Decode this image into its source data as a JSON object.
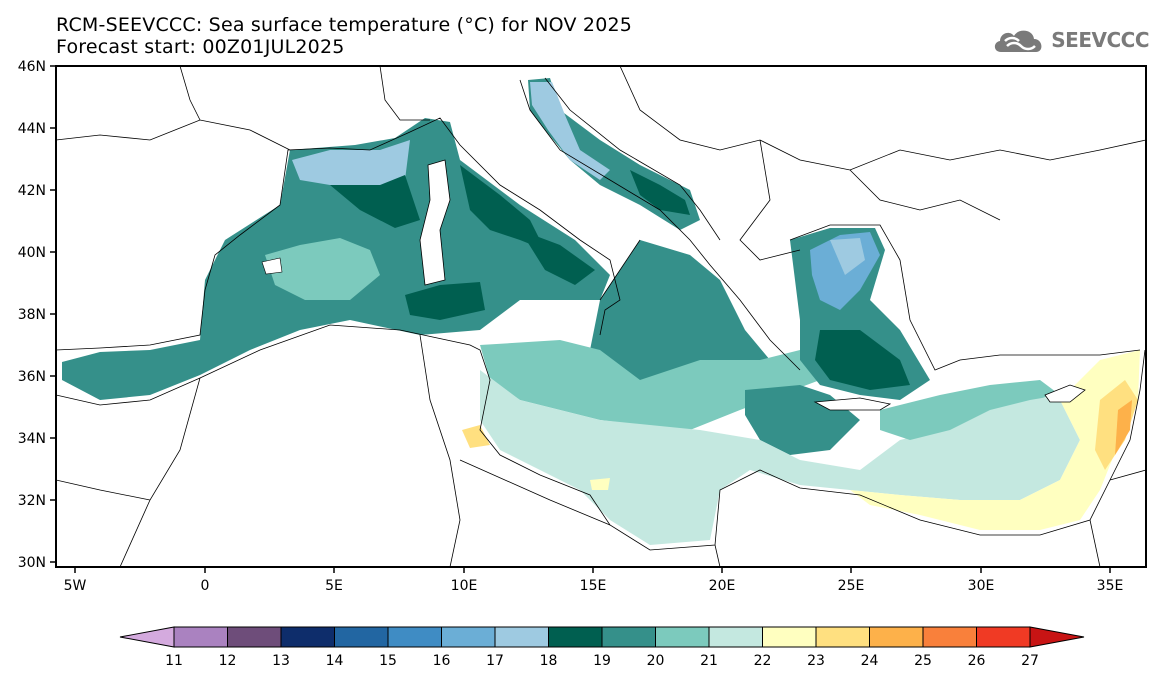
{
  "header": {
    "title": "RCM-SEEVCCC: Sea surface temperature (°C) for NOV 2025",
    "subtitle": "Forecast start: 00Z01JUL2025"
  },
  "logo": {
    "text": "SEEVCCC",
    "icon": "cloud-icon"
  },
  "map": {
    "lat_labels": [
      "46N",
      "44N",
      "42N",
      "40N",
      "38N",
      "36N",
      "34N",
      "32N",
      "30N"
    ],
    "lon_labels": [
      "5W",
      "0",
      "5E",
      "10E",
      "15E",
      "20E",
      "25E",
      "30E",
      "35E"
    ]
  },
  "colorbar": {
    "labels": [
      "11",
      "12",
      "13",
      "14",
      "15",
      "16",
      "17",
      "18",
      "19",
      "20",
      "21",
      "22",
      "23",
      "24",
      "25",
      "26",
      "27"
    ],
    "colors": [
      "#d4aade",
      "#aa82c0",
      "#6e4d7a",
      "#0e2d6b",
      "#2266a2",
      "#3f8cc4",
      "#6baed6",
      "#9ecae1",
      "#005f50",
      "#35908a",
      "#7ccabd",
      "#c4e8e0",
      "#ffffc0",
      "#ffe080",
      "#fdb14a",
      "#f9803b",
      "#f03a24",
      "#c81414"
    ]
  }
}
